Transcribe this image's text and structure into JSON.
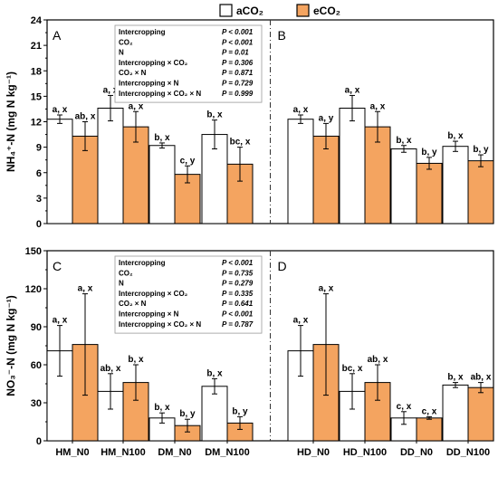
{
  "colors": {
    "aCO2": "#ffffff",
    "eCO2": "#f4a460",
    "stroke": "#000000"
  },
  "chart_data": {
    "type": "bar",
    "legend": {
      "placement": "top-center",
      "entries": [
        {
          "name": "aCO₂",
          "color": "#ffffff"
        },
        {
          "name": "eCO₂",
          "color": "#f4a460"
        }
      ]
    },
    "x_tick_labels": [
      "HM_N0",
      "HM_N100",
      "DM_N0",
      "DM_N100",
      "HD_N0",
      "HD_N100",
      "DD_N0",
      "DD_N100"
    ],
    "panels": [
      {
        "id": "top",
        "ylabel": "NH₄⁺-N (mg N kg⁻¹)",
        "ylim": [
          0,
          24
        ],
        "yticks": [
          "0",
          "3",
          "6",
          "9",
          "12",
          "15",
          "18",
          "21",
          "24"
        ],
        "subpanels": [
          {
            "letter": "A",
            "categories": [
              "HM_N0",
              "HM_N100",
              "DM_N0",
              "DM_N100"
            ],
            "series": [
              {
                "name": "aCO₂",
                "values": [
                  12.3,
                  13.6,
                  9.2,
                  10.5
                ],
                "errors": [
                  0.5,
                  1.5,
                  0.3,
                  1.7
                ],
                "labels": [
                  "a, x",
                  "a, x",
                  "b, x",
                  "b, x"
                ]
              },
              {
                "name": "eCO₂",
                "values": [
                  10.3,
                  11.4,
                  5.8,
                  7.0
                ],
                "errors": [
                  1.7,
                  1.8,
                  1.0,
                  2.0
                ],
                "labels": [
                  "ab, x",
                  "a, x",
                  "c, y",
                  "bc, x"
                ]
              }
            ],
            "stats": [
              {
                "term": "Intercropping",
                "p": "P < 0.001"
              },
              {
                "term": "CO₂",
                "p": "P < 0.001"
              },
              {
                "term": "N",
                "p": "P = 0.01"
              },
              {
                "term": "Intercropping × CO₂",
                "p": "P = 0.306"
              },
              {
                "term": "CO₂ × N",
                "p": "P = 0.871"
              },
              {
                "term": "Intercropping × N",
                "p": "P = 0.729"
              },
              {
                "term": "Intercropping × CO₂ × N",
                "p": "P = 0.999"
              }
            ]
          },
          {
            "letter": "B",
            "categories": [
              "HD_N0",
              "HD_N100",
              "DD_N0",
              "DD_N100"
            ],
            "series": [
              {
                "name": "aCO₂",
                "values": [
                  12.3,
                  13.6,
                  8.8,
                  9.1
                ],
                "errors": [
                  0.5,
                  1.5,
                  0.4,
                  0.6
                ],
                "labels": [
                  "a, x",
                  "a, x",
                  "b, x",
                  "b, x"
                ]
              },
              {
                "name": "eCO₂",
                "values": [
                  10.3,
                  11.4,
                  7.1,
                  7.4
                ],
                "errors": [
                  1.5,
                  1.8,
                  0.7,
                  0.7
                ],
                "labels": [
                  "a, y",
                  "a, x",
                  "b, y",
                  "b, y"
                ]
              }
            ]
          }
        ]
      },
      {
        "id": "bottom",
        "ylabel": "NO₃⁻-N (mg N kg⁻¹)",
        "ylim": [
          0,
          150
        ],
        "yticks": [
          "0",
          "30",
          "60",
          "90",
          "120",
          "150"
        ],
        "subpanels": [
          {
            "letter": "C",
            "categories": [
              "HM_N0",
              "HM_N100",
              "DM_N0",
              "DM_N100"
            ],
            "series": [
              {
                "name": "aCO₂",
                "values": [
                  71,
                  39,
                  18,
                  43
                ],
                "errors": [
                  20,
                  14,
                  4,
                  6
                ],
                "labels": [
                  "a, x",
                  "ab, x",
                  "b, x",
                  "b, x"
                ]
              },
              {
                "name": "eCO₂",
                "values": [
                  76,
                  46,
                  12,
                  14
                ],
                "errors": [
                  40,
                  14,
                  5,
                  5
                ],
                "labels": [
                  "a, x",
                  "b, x",
                  "b, y",
                  "b, y"
                ]
              }
            ],
            "stats": [
              {
                "term": "Intercropping",
                "p": "P < 0.001"
              },
              {
                "term": "CO₂",
                "p": "P = 0.735"
              },
              {
                "term": "N",
                "p": "P = 0.279"
              },
              {
                "term": "Intercropping × CO₂",
                "p": "P = 0.335"
              },
              {
                "term": "CO₂ × N",
                "p": "P = 0.641"
              },
              {
                "term": "Intercropping × N",
                "p": "P < 0.001"
              },
              {
                "term": "Intercropping × CO₂ × N",
                "p": "P = 0.787"
              }
            ]
          },
          {
            "letter": "D",
            "categories": [
              "HD_N0",
              "HD_N100",
              "DD_N0",
              "DD_N100"
            ],
            "series": [
              {
                "name": "aCO₂",
                "values": [
                  71,
                  39,
                  18,
                  44
                ],
                "errors": [
                  20,
                  14,
                  5,
                  2
                ],
                "labels": [
                  "a, x",
                  "bc, x",
                  "c, x",
                  "b, x"
                ]
              },
              {
                "name": "eCO₂",
                "values": [
                  76,
                  46,
                  18,
                  42
                ],
                "errors": [
                  40,
                  14,
                  1,
                  4
                ],
                "labels": [
                  "a, x",
                  "ab, x",
                  "c, x",
                  "ab, x"
                ]
              }
            ]
          }
        ]
      }
    ]
  }
}
